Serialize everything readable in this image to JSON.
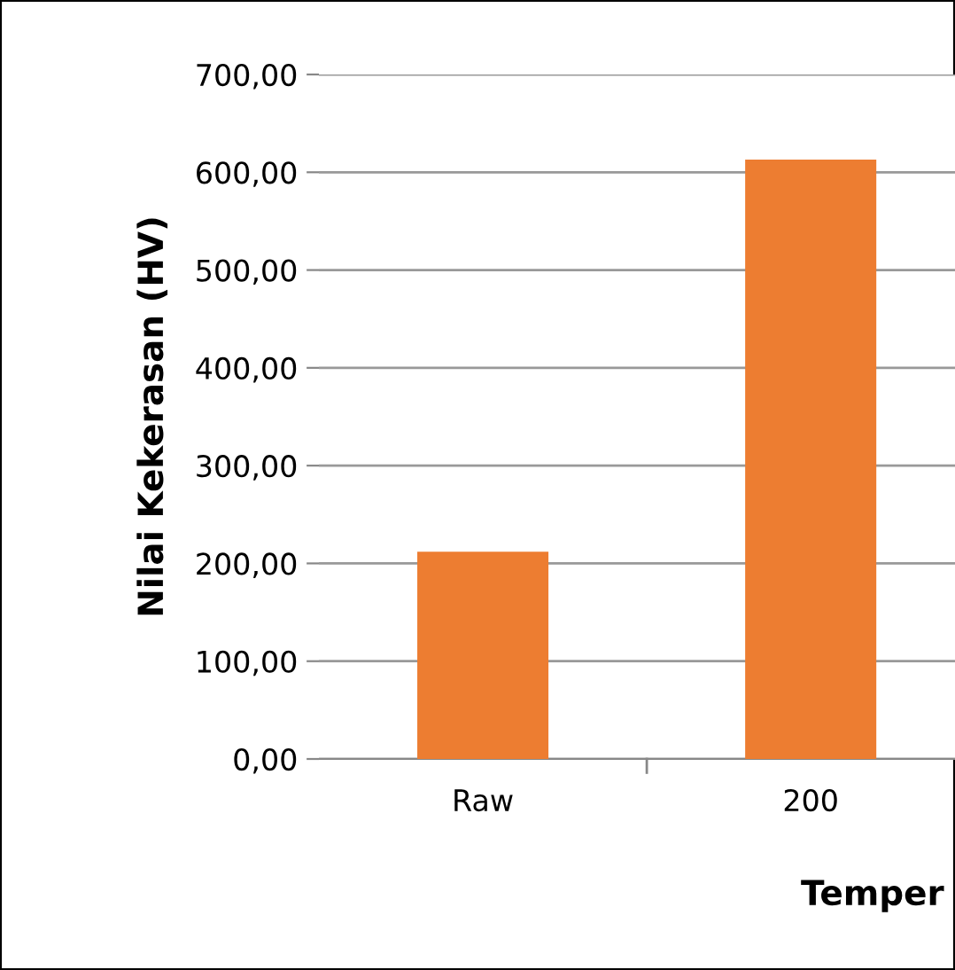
{
  "chart_data": {
    "type": "bar",
    "categories": [
      "Raw",
      "200"
    ],
    "values": [
      212,
      613
    ],
    "color": "#ed7d31",
    "ylabel": "Nilai Kekerasan (HV)",
    "xlabel": "Temper",
    "ylim": [
      0,
      700
    ],
    "yticks": [
      {
        "value": 0,
        "label": "0,00"
      },
      {
        "value": 100,
        "label": "100,00"
      },
      {
        "value": 200,
        "label": "200,00"
      },
      {
        "value": 300,
        "label": "300,00"
      },
      {
        "value": 400,
        "label": "400,00"
      },
      {
        "value": 500,
        "label": "500,00"
      },
      {
        "value": 600,
        "label": "600,00"
      },
      {
        "value": 700,
        "label": "700,00"
      }
    ],
    "grid": "y",
    "legend": false
  }
}
